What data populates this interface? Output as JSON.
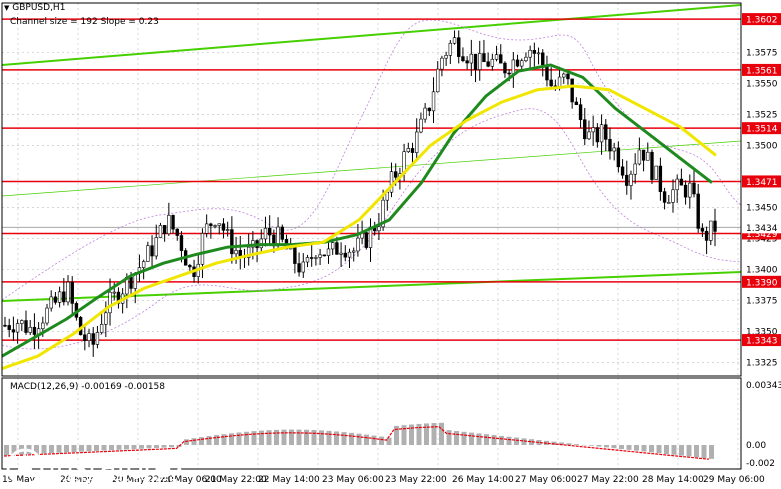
{
  "header": {
    "symbol": "GBPUSD,H1",
    "indicator": "Channel size = 192 Slope = 0.23",
    "macd_label": "MACD(12,26,9) -0.00169 -0.00158"
  },
  "watermark": {
    "brand": "instaforex",
    "tagline": "Instant Forex Trading"
  },
  "price_axis": {
    "ticks": [
      "1.3575",
      "1.3550",
      "1.3525",
      "1.3500",
      "1.3450",
      "1.3425",
      "1.3400",
      "1.3375",
      "1.3350",
      "1.3325"
    ],
    "ymin": 1.3314,
    "ymax": 1.3615,
    "current": "1.3434",
    "levels": [
      {
        "value": 1.3602,
        "label": "1.3602"
      },
      {
        "value": 1.3561,
        "label": "1.3561"
      },
      {
        "value": 1.3514,
        "label": "1.3514"
      },
      {
        "value": 1.3471,
        "label": "1.3471"
      },
      {
        "value": 1.3429,
        "label": "1.3429"
      },
      {
        "value": 1.339,
        "label": "1.3390"
      },
      {
        "value": 1.3343,
        "label": "1.3343"
      }
    ],
    "level_color": "#e8000b"
  },
  "macd_axis": {
    "ticks": [
      "0.00343",
      "0.00",
      "-0.002"
    ]
  },
  "time_axis": {
    "labels": [
      "19 May",
      "20 May",
      "20 May 22:00",
      "21 May 06:00",
      "21 May 22:00",
      "22 May 14:00",
      "23 May 06:00",
      "23 May 22:00",
      "26 May 14:00",
      "27 May 06:00",
      "27 May 22:00",
      "28 May 14:00",
      "29 May 06:00"
    ]
  },
  "chart_data": {
    "type": "candlestick",
    "symbol": "GBPUSD",
    "timeframe": "H1",
    "ohlc_close_path": [
      1.3355,
      1.3358,
      1.3352,
      1.3362,
      1.3372,
      1.3385,
      1.3349,
      1.3337,
      1.3368,
      1.338,
      1.3392,
      1.3405,
      1.342,
      1.344,
      1.3425,
      1.3395,
      1.343,
      1.3445,
      1.3422,
      1.341,
      1.3415,
      1.343,
      1.3425,
      1.341,
      1.3398,
      1.3418,
      1.3412,
      1.342,
      1.3415,
      1.3425,
      1.344,
      1.347,
      1.349,
      1.3505,
      1.353,
      1.357,
      1.3585,
      1.3575,
      1.3565,
      1.3568,
      1.3562,
      1.357,
      1.358,
      1.357,
      1.3545,
      1.3555,
      1.3525,
      1.3505,
      1.351,
      1.3495,
      1.3475,
      1.35,
      1.348,
      1.346,
      1.3465,
      1.3465,
      1.3425,
      1.3434
    ],
    "moving_averages": [
      {
        "color": "#1e8a1e",
        "values": [
          1.333,
          1.3345,
          1.336,
          1.3378,
          1.3395,
          1.3405,
          1.3412,
          1.3418,
          1.342,
          1.342,
          1.3422,
          1.3428,
          1.344,
          1.347,
          1.351,
          1.354,
          1.356,
          1.3565,
          1.3555,
          1.353,
          1.351,
          1.349,
          1.347
        ]
      },
      {
        "color": "#f0e600",
        "values": [
          1.332,
          1.333,
          1.3348,
          1.337,
          1.3385,
          1.3395,
          1.3405,
          1.3412,
          1.3418,
          1.3422,
          1.344,
          1.347,
          1.35,
          1.352,
          1.3535,
          1.3545,
          1.3548,
          1.3545,
          1.353,
          1.3515,
          1.3492
        ]
      }
    ],
    "channel_color": "#46d000"
  }
}
